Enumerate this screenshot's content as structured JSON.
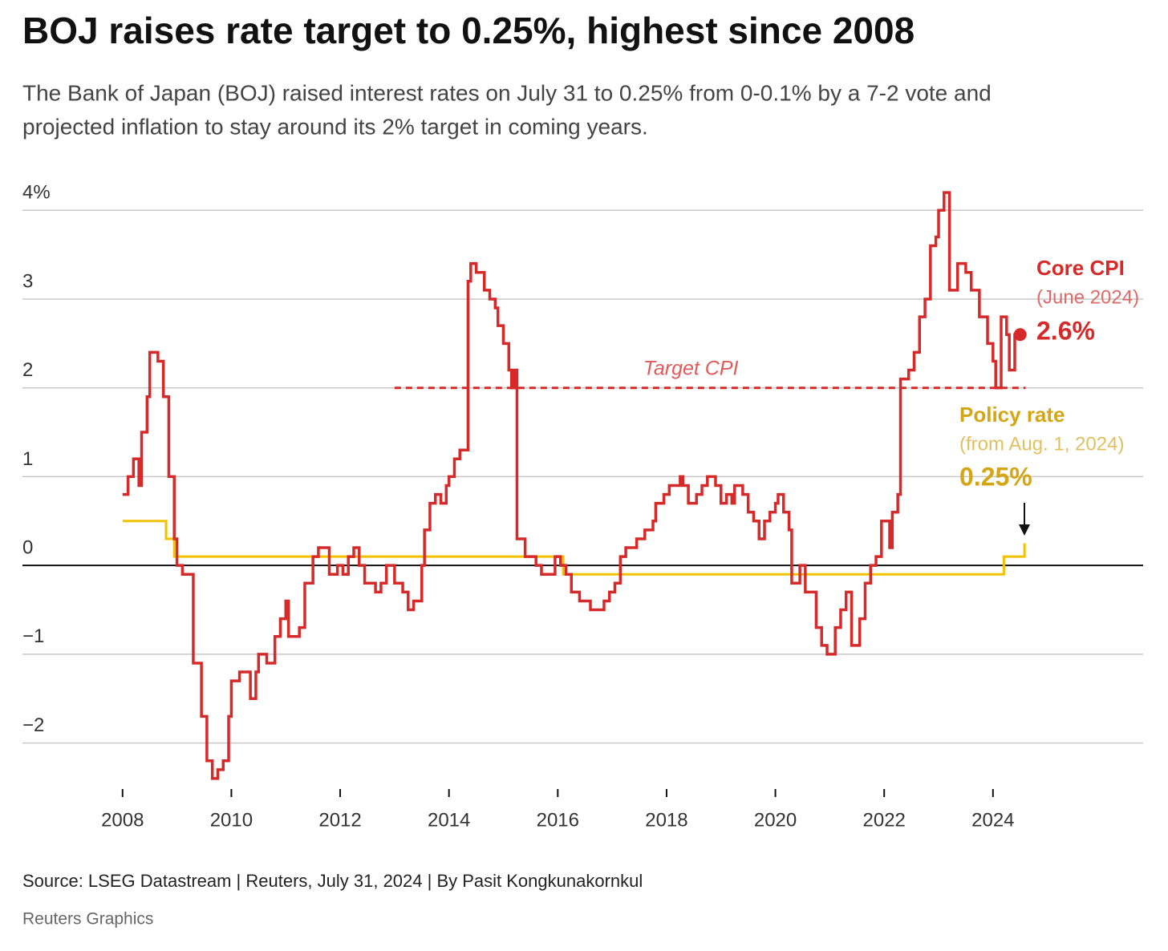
{
  "chart_data": {
    "type": "step-line",
    "title": "BOJ raises rate target to 0.25%, highest since 2008",
    "subtitle": [
      "The Bank of Japan (BOJ) raised interest rates on July 31 to 0.25% from 0-0.1% by a 7-2 vote and",
      "projected inflation to stay around its 2% target in coming years."
    ],
    "xlim": [
      2006.16,
      2026.76
    ],
    "xticks": [
      2008,
      2010,
      2012,
      2014,
      2016,
      2018,
      2020,
      2022,
      2024
    ],
    "ylim": [
      -2.5,
      4.3
    ],
    "yticks": [
      {
        "value": -2,
        "label": "−2"
      },
      {
        "value": -1,
        "label": "−1"
      },
      0,
      1,
      2,
      3,
      {
        "value": 4,
        "label": "4%"
      }
    ],
    "grid": true,
    "series": [
      {
        "name": "Core CPI",
        "note": "(June 2024)",
        "last_label": "2.6%",
        "color": "#d62a2a",
        "x": [
          2008.0,
          2008.1,
          2008.2,
          2008.3,
          2008.35,
          2008.45,
          2008.5,
          2008.65,
          2008.75,
          2008.85,
          2008.95,
          2009.0,
          2009.1,
          2009.3,
          2009.45,
          2009.55,
          2009.65,
          2009.75,
          2009.85,
          2009.95,
          2010.0,
          2010.15,
          2010.35,
          2010.45,
          2010.5,
          2010.65,
          2010.8,
          2010.9,
          2011.0,
          2011.05,
          2011.25,
          2011.35,
          2011.5,
          2011.6,
          2011.8,
          2011.95,
          2012.05,
          2012.15,
          2012.25,
          2012.35,
          2012.45,
          2012.65,
          2012.75,
          2012.85,
          2013.0,
          2013.15,
          2013.25,
          2013.35,
          2013.5,
          2013.55,
          2013.65,
          2013.75,
          2013.85,
          2013.95,
          2014.0,
          2014.1,
          2014.2,
          2014.35,
          2014.4,
          2014.5,
          2014.65,
          2014.75,
          2014.85,
          2014.9,
          2015.0,
          2015.1,
          2015.15,
          2015.2,
          2015.25,
          2015.4,
          2015.6,
          2015.7,
          2015.95,
          2016.05,
          2016.15,
          2016.25,
          2016.4,
          2016.6,
          2016.85,
          2016.95,
          2017.05,
          2017.15,
          2017.25,
          2017.45,
          2017.6,
          2017.75,
          2017.8,
          2017.95,
          2018.05,
          2018.25,
          2018.3,
          2018.4,
          2018.55,
          2018.65,
          2018.75,
          2018.9,
          2019.0,
          2019.1,
          2019.2,
          2019.25,
          2019.4,
          2019.5,
          2019.6,
          2019.7,
          2019.8,
          2019.9,
          2020.0,
          2020.05,
          2020.15,
          2020.25,
          2020.3,
          2020.45,
          2020.55,
          2020.75,
          2020.85,
          2020.95,
          2021.1,
          2021.2,
          2021.3,
          2021.4,
          2021.55,
          2021.65,
          2021.75,
          2021.85,
          2021.95,
          2022.1,
          2022.15,
          2022.25,
          2022.3,
          2022.45,
          2022.55,
          2022.65,
          2022.75,
          2022.85,
          2022.95,
          2023.0,
          2023.1,
          2023.2,
          2023.35,
          2023.5,
          2023.6,
          2023.75,
          2023.9,
          2024.0,
          2024.05,
          2024.15,
          2024.25,
          2024.3,
          2024.4,
          2024.5
        ],
        "values": [
          0.8,
          1.0,
          1.2,
          0.9,
          1.5,
          1.9,
          2.4,
          2.3,
          1.9,
          1.0,
          0.3,
          0.0,
          -0.1,
          -1.1,
          -1.7,
          -2.2,
          -2.4,
          -2.3,
          -2.2,
          -1.7,
          -1.3,
          -1.2,
          -1.5,
          -1.2,
          -1.0,
          -1.1,
          -0.8,
          -0.6,
          -0.4,
          -0.8,
          -0.7,
          -0.2,
          0.1,
          0.2,
          -0.1,
          0.0,
          -0.1,
          0.1,
          0.2,
          0.0,
          -0.2,
          -0.3,
          -0.2,
          0.0,
          -0.2,
          -0.3,
          -0.5,
          -0.4,
          0.0,
          0.4,
          0.7,
          0.8,
          0.7,
          0.9,
          1.0,
          1.2,
          1.3,
          3.2,
          3.4,
          3.3,
          3.1,
          3.0,
          2.9,
          2.7,
          2.5,
          2.2,
          2.0,
          2.2,
          0.3,
          0.1,
          0.0,
          -0.1,
          0.1,
          0.0,
          -0.1,
          -0.3,
          -0.4,
          -0.5,
          -0.4,
          -0.3,
          -0.2,
          0.1,
          0.2,
          0.3,
          0.4,
          0.5,
          0.7,
          0.8,
          0.9,
          1.0,
          0.9,
          0.7,
          0.8,
          0.9,
          1.0,
          0.9,
          0.7,
          0.8,
          0.7,
          0.9,
          0.8,
          0.6,
          0.5,
          0.3,
          0.5,
          0.6,
          0.7,
          0.8,
          0.6,
          0.4,
          -0.2,
          0.0,
          -0.3,
          -0.7,
          -0.9,
          -1.0,
          -0.7,
          -0.5,
          -0.3,
          -0.9,
          -0.6,
          -0.2,
          0.0,
          0.1,
          0.5,
          0.2,
          0.6,
          0.8,
          2.1,
          2.2,
          2.4,
          2.8,
          3.0,
          3.6,
          3.7,
          4.0,
          4.2,
          3.1,
          3.4,
          3.3,
          3.1,
          2.8,
          2.5,
          2.3,
          2.0,
          2.8,
          2.6,
          2.2,
          2.6,
          2.6
        ]
      },
      {
        "name": "Policy rate",
        "note": "(from Aug. 1, 2024)",
        "last_label": "0.25%",
        "color": "#f2c200",
        "label_color": "#d4a514",
        "x": [
          2008.0,
          2008.8,
          2008.95,
          2016.1,
          2024.2,
          2024.58
        ],
        "values": [
          0.5,
          0.3,
          0.1,
          -0.1,
          0.1,
          0.25
        ]
      }
    ],
    "target": {
      "label": "Target CPI",
      "value": 2,
      "x": [
        2013.0,
        2024.6
      ]
    },
    "source": "Source: LSEG Datastream | Reuters, July 31, 2024 | By Pasit Kongkunakornkul",
    "credit": "Reuters Graphics"
  }
}
